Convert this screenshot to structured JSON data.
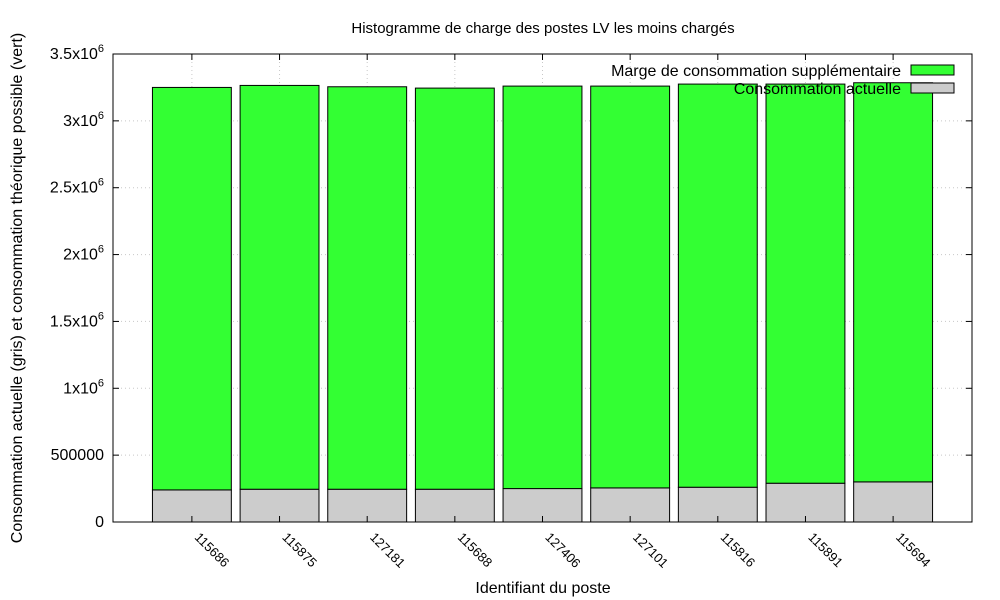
{
  "chart_data": {
    "type": "bar",
    "stacked": true,
    "title": "Histogramme de charge des postes LV les moins chargés",
    "xlabel": "Identifiant du poste",
    "ylabel": "Consommation actuelle (gris) et consommation théorique possible (vert)",
    "ylim": [
      0,
      3500000
    ],
    "yticks": [
      {
        "value": 0,
        "label": "0",
        "sup": ""
      },
      {
        "value": 500000,
        "label": "500000",
        "sup": ""
      },
      {
        "value": 1000000,
        "label": "1x10",
        "sup": "6"
      },
      {
        "value": 1500000,
        "label": "1.5x10",
        "sup": "6"
      },
      {
        "value": 2000000,
        "label": "2x10",
        "sup": "6"
      },
      {
        "value": 2500000,
        "label": "2.5x10",
        "sup": "6"
      },
      {
        "value": 3000000,
        "label": "3x10",
        "sup": "6"
      },
      {
        "value": 3500000,
        "label": "3.5x10",
        "sup": "6"
      }
    ],
    "categories": [
      "115686",
      "115875",
      "127181",
      "115688",
      "127406",
      "127101",
      "115816",
      "115891",
      "115694"
    ],
    "grid": true,
    "legend_position": "top-right",
    "series": [
      {
        "name": "Consommation actuelle",
        "color": "#cccccc",
        "values": [
          240000,
          245000,
          245000,
          245000,
          250000,
          255000,
          260000,
          290000,
          300000
        ]
      },
      {
        "name": "Marge de consommation supplémentaire",
        "color": "#33ff33",
        "values": [
          3010000,
          3020000,
          3010000,
          3000000,
          3010000,
          3005000,
          3015000,
          2985000,
          2985000
        ]
      }
    ],
    "legend_order": [
      1,
      0
    ]
  }
}
